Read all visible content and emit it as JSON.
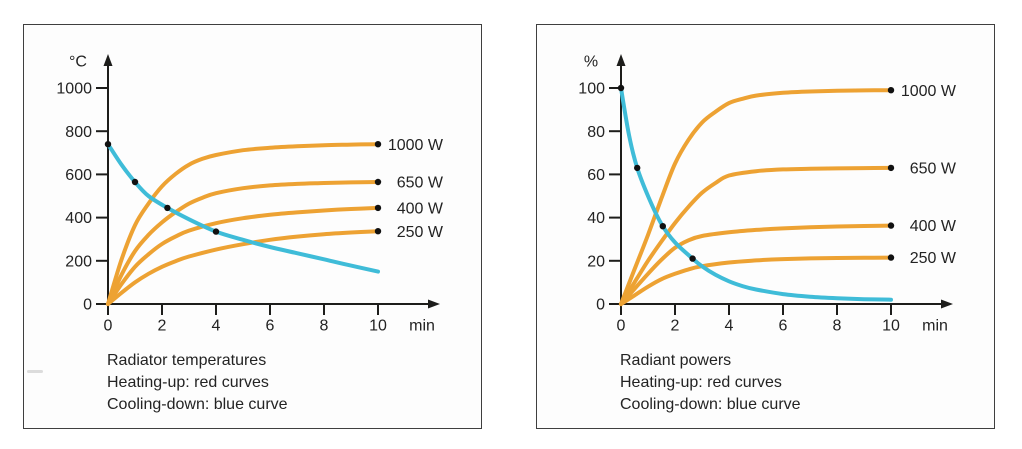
{
  "figure": {
    "background": "#ffffff",
    "panel_background": "#fdfdfd",
    "panel_border_color": "#3f3f3f"
  },
  "colors": {
    "heating_curve": "#EDA233",
    "cooling_curve": "#3FBCD8",
    "axis": "#1d1d1b",
    "text": "#232323",
    "marker_dot": "#111111"
  },
  "chart_data": [
    {
      "type": "line",
      "title": "Radiator temperatures",
      "ylabel": "°C",
      "xlabel": "min",
      "xlim": [
        0,
        10
      ],
      "ylim": [
        0,
        1000
      ],
      "x_ticks": [
        0,
        2,
        4,
        6,
        8,
        10
      ],
      "y_ticks": [
        0,
        200,
        400,
        600,
        800,
        1000
      ],
      "grid": false,
      "legend_position": "labels-at-curve-ends",
      "caption_lines": [
        "Radiator temperatures",
        "Heating-up: red curves",
        "Cooling-down: blue curve"
      ],
      "series": [
        {
          "label": "1000 W",
          "role": "heating",
          "end_marker": true,
          "points": [
            [
              0,
              0
            ],
            [
              0.5,
              205
            ],
            [
              1,
              365
            ],
            [
              1.5,
              465
            ],
            [
              2,
              545
            ],
            [
              2.5,
              602
            ],
            [
              3,
              645
            ],
            [
              3.5,
              672
            ],
            [
              4,
              690
            ],
            [
              5,
              712
            ],
            [
              6,
              723
            ],
            [
              7,
              730
            ],
            [
              8,
              735
            ],
            [
              9,
              738
            ],
            [
              10,
              740
            ]
          ]
        },
        {
          "label": "650 W",
          "role": "heating",
          "end_marker": true,
          "points": [
            [
              0,
              0
            ],
            [
              0.5,
              135
            ],
            [
              1,
              245
            ],
            [
              1.5,
              320
            ],
            [
              2,
              378
            ],
            [
              2.5,
              425
            ],
            [
              3,
              465
            ],
            [
              3.5,
              492
            ],
            [
              4,
              513
            ],
            [
              5,
              536
            ],
            [
              6,
              549
            ],
            [
              7,
              556
            ],
            [
              8,
              560
            ],
            [
              9,
              563
            ],
            [
              10,
              565
            ]
          ]
        },
        {
          "label": "400 W",
          "role": "heating",
          "end_marker": true,
          "points": [
            [
              0,
              0
            ],
            [
              0.5,
              92
            ],
            [
              1,
              172
            ],
            [
              1.5,
              230
            ],
            [
              2,
              278
            ],
            [
              2.5,
              312
            ],
            [
              3,
              340
            ],
            [
              4,
              374
            ],
            [
              5,
              397
            ],
            [
              6,
              413
            ],
            [
              7,
              424
            ],
            [
              8,
              433
            ],
            [
              9,
              440
            ],
            [
              10,
              445
            ]
          ]
        },
        {
          "label": "250 W",
          "role": "heating",
          "end_marker": true,
          "points": [
            [
              0,
              0
            ],
            [
              0.5,
              52
            ],
            [
              1,
              100
            ],
            [
              1.5,
              140
            ],
            [
              2,
              172
            ],
            [
              2.5,
              198
            ],
            [
              3,
              220
            ],
            [
              4,
              252
            ],
            [
              5,
              277
            ],
            [
              6,
              297
            ],
            [
              7,
              312
            ],
            [
              8,
              323
            ],
            [
              9,
              331
            ],
            [
              10,
              337
            ]
          ]
        },
        {
          "label": "",
          "role": "cooling",
          "end_marker": false,
          "points": [
            [
              0,
              740
            ],
            [
              0.5,
              645
            ],
            [
              1,
              565
            ],
            [
              1.5,
              500
            ],
            [
              2.2,
              445
            ],
            [
              3,
              392
            ],
            [
              4,
              335
            ],
            [
              5,
              297
            ],
            [
              6,
              264
            ],
            [
              7,
              235
            ],
            [
              8,
              207
            ],
            [
              9,
              178
            ],
            [
              10,
              150
            ]
          ],
          "marker_points": [
            [
              0,
              740
            ],
            [
              1,
              565
            ],
            [
              2.2,
              445
            ],
            [
              4,
              335
            ]
          ]
        }
      ]
    },
    {
      "type": "line",
      "title": "Radiant powers",
      "ylabel": "%",
      "xlabel": "min",
      "xlim": [
        0,
        10
      ],
      "ylim": [
        0,
        100
      ],
      "x_ticks": [
        0,
        2,
        4,
        6,
        8,
        10
      ],
      "y_ticks": [
        0,
        20,
        40,
        60,
        80,
        100
      ],
      "grid": false,
      "legend_position": "labels-at-curve-ends",
      "caption_lines": [
        "Radiant powers",
        "Heating-up: red curves",
        "Cooling-down: blue curve"
      ],
      "series": [
        {
          "label": "1000 W",
          "role": "heating",
          "end_marker": true,
          "points": [
            [
              0,
              0
            ],
            [
              0.5,
              16
            ],
            [
              1,
              32
            ],
            [
              1.5,
              49
            ],
            [
              2,
              65
            ],
            [
              2.5,
              76
            ],
            [
              3,
              84
            ],
            [
              3.5,
              89
            ],
            [
              4,
              93
            ],
            [
              4.5,
              95
            ],
            [
              5,
              96.5
            ],
            [
              6,
              97.8
            ],
            [
              7,
              98.4
            ],
            [
              8,
              98.7
            ],
            [
              9,
              98.9
            ],
            [
              10,
              99
            ]
          ]
        },
        {
          "label": "650 W",
          "role": "heating",
          "end_marker": true,
          "points": [
            [
              0,
              0
            ],
            [
              0.5,
              10
            ],
            [
              1,
              20
            ],
            [
              1.5,
              29
            ],
            [
              2,
              37.5
            ],
            [
              2.5,
              45
            ],
            [
              3,
              51.5
            ],
            [
              3.5,
              56
            ],
            [
              4,
              59.5
            ],
            [
              5,
              61.5
            ],
            [
              6,
              62.3
            ],
            [
              7,
              62.6
            ],
            [
              8,
              62.8
            ],
            [
              9,
              62.9
            ],
            [
              10,
              63
            ]
          ]
        },
        {
          "label": "400 W",
          "role": "heating",
          "end_marker": true,
          "points": [
            [
              0,
              0
            ],
            [
              0.5,
              7
            ],
            [
              1,
              14
            ],
            [
              1.5,
              20.5
            ],
            [
              2,
              26
            ],
            [
              2.5,
              29.5
            ],
            [
              3,
              31.5
            ],
            [
              4,
              33.2
            ],
            [
              5,
              34.3
            ],
            [
              6,
              35
            ],
            [
              7,
              35.5
            ],
            [
              8,
              35.9
            ],
            [
              9,
              36.1
            ],
            [
              10,
              36.3
            ]
          ]
        },
        {
          "label": "250 W",
          "role": "heating",
          "end_marker": true,
          "points": [
            [
              0,
              0
            ],
            [
              0.5,
              4
            ],
            [
              1,
              8
            ],
            [
              1.5,
              11.5
            ],
            [
              2,
              14
            ],
            [
              2.5,
              16
            ],
            [
              3,
              17.5
            ],
            [
              4,
              19.2
            ],
            [
              5,
              20.2
            ],
            [
              6,
              20.8
            ],
            [
              7,
              21.1
            ],
            [
              8,
              21.3
            ],
            [
              9,
              21.4
            ],
            [
              10,
              21.5
            ]
          ]
        },
        {
          "label": "",
          "role": "cooling",
          "end_marker": false,
          "points": [
            [
              0,
              100
            ],
            [
              0.3,
              78
            ],
            [
              0.6,
              63
            ],
            [
              1,
              50
            ],
            [
              1.5,
              37
            ],
            [
              2,
              28.5
            ],
            [
              2.65,
              21
            ],
            [
              3,
              17.5
            ],
            [
              3.5,
              13.5
            ],
            [
              4,
              10.5
            ],
            [
              4.5,
              8.3
            ],
            [
              5,
              6.7
            ],
            [
              6,
              4.6
            ],
            [
              7,
              3.4
            ],
            [
              8,
              2.7
            ],
            [
              9,
              2.2
            ],
            [
              10,
              2
            ]
          ],
          "marker_points": [
            [
              0,
              100
            ],
            [
              0.6,
              63
            ],
            [
              1.55,
              36
            ],
            [
              2.65,
              21
            ]
          ]
        }
      ]
    }
  ]
}
